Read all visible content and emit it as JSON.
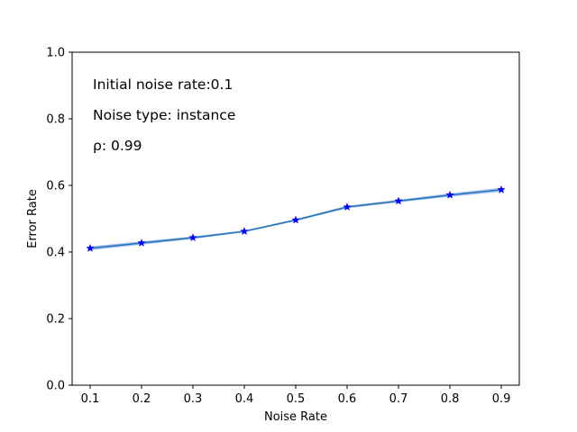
{
  "chart_data": {
    "type": "line",
    "xlabel": "Noise Rate",
    "ylabel": "Error Rate",
    "xlim": [
      0.065,
      0.935
    ],
    "ylim": [
      0.0,
      1.0
    ],
    "x_ticks": [
      "0.1",
      "0.2",
      "0.3",
      "0.4",
      "0.5",
      "0.6",
      "0.7",
      "0.8",
      "0.9"
    ],
    "y_ticks": [
      "0.0",
      "0.2",
      "0.4",
      "0.6",
      "0.8",
      "1.0"
    ],
    "grid": false,
    "annotations": [
      "Initial noise rate:0.1",
      "Noise type: instance",
      "ρ: 0.99"
    ],
    "series": [
      {
        "marker": "star",
        "color": "#1f77b4",
        "marker_color": "#0000ff",
        "band_color": "#8fa8f0",
        "x": [
          0.1,
          0.2,
          0.3,
          0.4,
          0.5,
          0.6,
          0.7,
          0.8,
          0.9
        ],
        "values": [
          0.411,
          0.427,
          0.443,
          0.462,
          0.496,
          0.535,
          0.553,
          0.571,
          0.587
        ],
        "lower": [
          0.405,
          0.422,
          0.439,
          0.459,
          0.493,
          0.531,
          0.549,
          0.566,
          0.581
        ],
        "upper": [
          0.417,
          0.432,
          0.447,
          0.465,
          0.499,
          0.539,
          0.557,
          0.576,
          0.593
        ]
      }
    ]
  }
}
